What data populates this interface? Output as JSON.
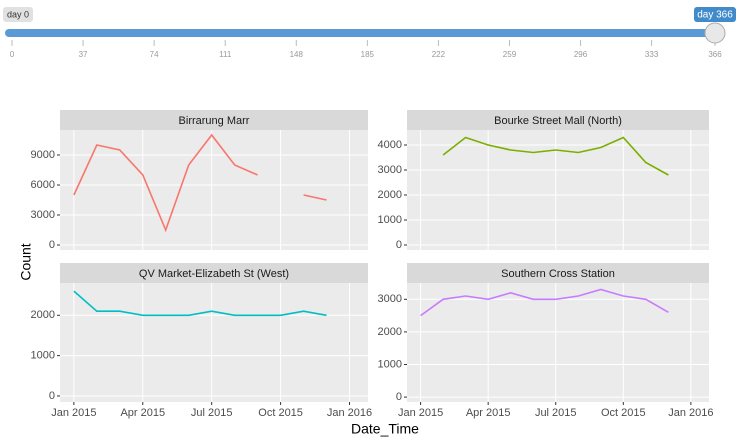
{
  "slider": {
    "min_label": "day 0",
    "value_label": "day 366",
    "min": 0,
    "max": 366,
    "value": 366,
    "ticks": [
      0,
      37,
      74,
      111,
      148,
      185,
      222,
      259,
      296,
      333,
      366
    ]
  },
  "axis_labels": {
    "x": "Date_Time",
    "y": "Count"
  },
  "chart_data": [
    {
      "type": "line",
      "title": "Birrarung Marr",
      "color": "#F8766D",
      "x": [
        "2015-01",
        "2015-02",
        "2015-03",
        "2015-04",
        "2015-05",
        "2015-06",
        "2015-07",
        "2015-08",
        "2015-09",
        "2015-10",
        "2015-11",
        "2015-12"
      ],
      "values": [
        5000,
        10000,
        9500,
        7000,
        1500,
        8000,
        11000,
        8000,
        7000,
        null,
        5000,
        4500
      ],
      "xlim": [
        "2015-01",
        "2016-01"
      ],
      "xticks": [
        {
          "value": "2015-01",
          "label": "Jan 2015"
        },
        {
          "value": "2015-04",
          "label": "Apr 2015"
        },
        {
          "value": "2015-07",
          "label": "Jul 2015"
        },
        {
          "value": "2015-10",
          "label": "Oct 2015"
        },
        {
          "value": "2016-01",
          "label": "Jan 2016"
        }
      ],
      "ylim": [
        -500,
        11500
      ],
      "yticks": [
        0,
        3000,
        6000,
        9000
      ],
      "grid": true
    },
    {
      "type": "line",
      "title": "Bourke Street Mall (North)",
      "color": "#7CAE00",
      "x": [
        "2015-01",
        "2015-02",
        "2015-03",
        "2015-04",
        "2015-05",
        "2015-06",
        "2015-07",
        "2015-08",
        "2015-09",
        "2015-10",
        "2015-11",
        "2015-12"
      ],
      "values": [
        null,
        3600,
        4300,
        4000,
        3800,
        3700,
        3800,
        3700,
        3900,
        4300,
        3300,
        2800
      ],
      "xlim": [
        "2015-01",
        "2016-01"
      ],
      "xticks": [
        {
          "value": "2015-01",
          "label": "Jan 2015"
        },
        {
          "value": "2015-04",
          "label": "Apr 2015"
        },
        {
          "value": "2015-07",
          "label": "Jul 2015"
        },
        {
          "value": "2015-10",
          "label": "Oct 2015"
        },
        {
          "value": "2016-01",
          "label": "Jan 2016"
        }
      ],
      "ylim": [
        -200,
        4600
      ],
      "yticks": [
        0,
        1000,
        2000,
        3000,
        4000
      ],
      "grid": true
    },
    {
      "type": "line",
      "title": "QV Market-Elizabeth St (West)",
      "color": "#00BFC4",
      "x": [
        "2015-01",
        "2015-02",
        "2015-03",
        "2015-04",
        "2015-05",
        "2015-06",
        "2015-07",
        "2015-08",
        "2015-09",
        "2015-10",
        "2015-11",
        "2015-12"
      ],
      "values": [
        2600,
        2100,
        2100,
        2000,
        2000,
        2000,
        2100,
        2000,
        2000,
        2000,
        2100,
        2000
      ],
      "xlim": [
        "2015-01",
        "2016-01"
      ],
      "xticks": [
        {
          "value": "2015-01",
          "label": "Jan 2015"
        },
        {
          "value": "2015-04",
          "label": "Apr 2015"
        },
        {
          "value": "2015-07",
          "label": "Jul 2015"
        },
        {
          "value": "2015-10",
          "label": "Oct 2015"
        },
        {
          "value": "2016-01",
          "label": "Jan 2016"
        }
      ],
      "ylim": [
        -150,
        2800
      ],
      "yticks": [
        0,
        1000,
        2000
      ],
      "grid": true
    },
    {
      "type": "line",
      "title": "Southern Cross Station",
      "color": "#C77CFF",
      "x": [
        "2015-01",
        "2015-02",
        "2015-03",
        "2015-04",
        "2015-05",
        "2015-06",
        "2015-07",
        "2015-08",
        "2015-09",
        "2015-10",
        "2015-11",
        "2015-12"
      ],
      "values": [
        2500,
        3000,
        3100,
        3000,
        3200,
        3000,
        3000,
        3100,
        3300,
        3100,
        3000,
        2600
      ],
      "xlim": [
        "2015-01",
        "2016-01"
      ],
      "xticks": [
        {
          "value": "2015-01",
          "label": "Jan 2015"
        },
        {
          "value": "2015-04",
          "label": "Apr 2015"
        },
        {
          "value": "2015-07",
          "label": "Jul 2015"
        },
        {
          "value": "2015-10",
          "label": "Oct 2015"
        },
        {
          "value": "2016-01",
          "label": "Jan 2016"
        }
      ],
      "ylim": [
        -150,
        3500
      ],
      "yticks": [
        0,
        1000,
        2000,
        3000
      ],
      "grid": true
    }
  ]
}
